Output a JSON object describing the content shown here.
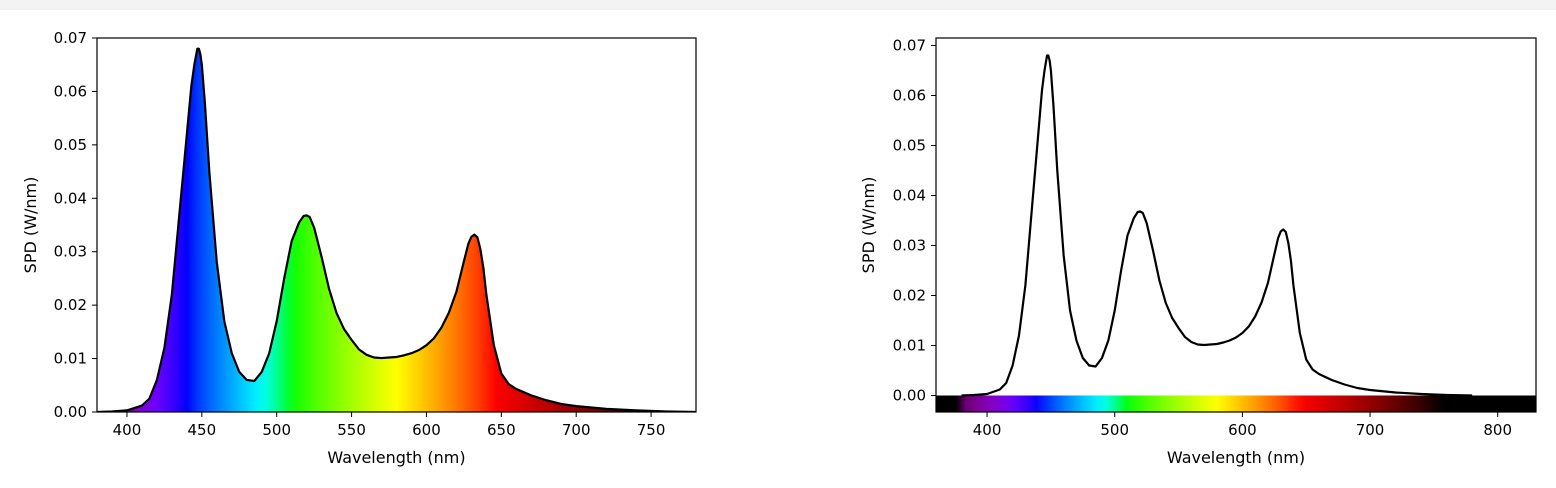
{
  "chart_data": [
    {
      "type": "area",
      "variant": "spectrum-filled",
      "xlabel": "Wavelength (nm)",
      "ylabel": "SPD (W/nm)",
      "xlim": [
        380,
        780
      ],
      "ylim": [
        0,
        0.07
      ],
      "xticks": [
        400,
        450,
        500,
        550,
        600,
        650,
        700,
        750
      ],
      "yticks": [
        0.0,
        0.01,
        0.02,
        0.03,
        0.04,
        0.05,
        0.06,
        0.07
      ],
      "grid": false,
      "series": [
        {
          "x": [
            380,
            390,
            400,
            410,
            415,
            420,
            425,
            430,
            435,
            440,
            443,
            445,
            447,
            448,
            449,
            450,
            452,
            455,
            460,
            465,
            470,
            475,
            480,
            485,
            490,
            495,
            500,
            505,
            510,
            515,
            518,
            520,
            522,
            525,
            530,
            535,
            540,
            545,
            550,
            555,
            560,
            565,
            570,
            575,
            580,
            585,
            590,
            595,
            600,
            605,
            610,
            615,
            620,
            625,
            628,
            630,
            632,
            634,
            636,
            638,
            640,
            645,
            650,
            655,
            660,
            670,
            680,
            690,
            700,
            720,
            740,
            760,
            780
          ],
          "y": [
            0.0,
            0.0001,
            0.0003,
            0.0012,
            0.0025,
            0.006,
            0.012,
            0.022,
            0.037,
            0.052,
            0.061,
            0.065,
            0.068,
            0.068,
            0.067,
            0.065,
            0.058,
            0.045,
            0.028,
            0.017,
            0.011,
            0.0075,
            0.006,
            0.0058,
            0.0075,
            0.011,
            0.017,
            0.025,
            0.032,
            0.0355,
            0.0367,
            0.0368,
            0.0365,
            0.0345,
            0.029,
            0.023,
            0.0185,
            0.0155,
            0.0135,
            0.0117,
            0.0107,
            0.0102,
            0.0101,
            0.0102,
            0.0103,
            0.0106,
            0.011,
            0.0116,
            0.0125,
            0.0138,
            0.0158,
            0.0186,
            0.0225,
            0.0282,
            0.0315,
            0.0328,
            0.0332,
            0.0327,
            0.0305,
            0.027,
            0.022,
            0.0125,
            0.0072,
            0.0052,
            0.0043,
            0.0031,
            0.0022,
            0.0015,
            0.0011,
            0.0006,
            0.0003,
            0.0001,
            0.0
          ]
        }
      ]
    },
    {
      "type": "line",
      "variant": "spectrum-strip",
      "xlabel": "Wavelength (nm)",
      "ylabel": "SPD (W/nm)",
      "xlim": [
        360,
        830
      ],
      "ylim": [
        -0.0033,
        0.0715
      ],
      "xticks": [
        400,
        500,
        600,
        700,
        800
      ],
      "yticks": [
        0.0,
        0.01,
        0.02,
        0.03,
        0.04,
        0.05,
        0.06,
        0.07
      ],
      "grid": false,
      "series": [
        {
          "x": [
            380,
            390,
            400,
            410,
            415,
            420,
            425,
            430,
            435,
            440,
            443,
            445,
            447,
            448,
            449,
            450,
            452,
            455,
            460,
            465,
            470,
            475,
            480,
            485,
            490,
            495,
            500,
            505,
            510,
            515,
            518,
            520,
            522,
            525,
            530,
            535,
            540,
            545,
            550,
            555,
            560,
            565,
            570,
            575,
            580,
            585,
            590,
            595,
            600,
            605,
            610,
            615,
            620,
            625,
            628,
            630,
            632,
            634,
            636,
            638,
            640,
            645,
            650,
            655,
            660,
            670,
            680,
            690,
            700,
            720,
            740,
            760,
            780
          ],
          "y": [
            0.0,
            0.0001,
            0.0003,
            0.0012,
            0.0025,
            0.006,
            0.012,
            0.022,
            0.037,
            0.052,
            0.061,
            0.065,
            0.068,
            0.068,
            0.067,
            0.065,
            0.058,
            0.045,
            0.028,
            0.017,
            0.011,
            0.0075,
            0.006,
            0.0058,
            0.0075,
            0.011,
            0.017,
            0.025,
            0.032,
            0.0355,
            0.0367,
            0.0368,
            0.0365,
            0.0345,
            0.029,
            0.023,
            0.0185,
            0.0155,
            0.0135,
            0.0117,
            0.0107,
            0.0102,
            0.0101,
            0.0102,
            0.0103,
            0.0106,
            0.011,
            0.0116,
            0.0125,
            0.0138,
            0.0158,
            0.0186,
            0.0225,
            0.0282,
            0.0315,
            0.0328,
            0.0332,
            0.0327,
            0.0305,
            0.027,
            0.022,
            0.0125,
            0.0072,
            0.0052,
            0.0043,
            0.0031,
            0.0022,
            0.0015,
            0.0011,
            0.0006,
            0.0003,
            0.0001,
            0.0
          ]
        }
      ]
    }
  ]
}
